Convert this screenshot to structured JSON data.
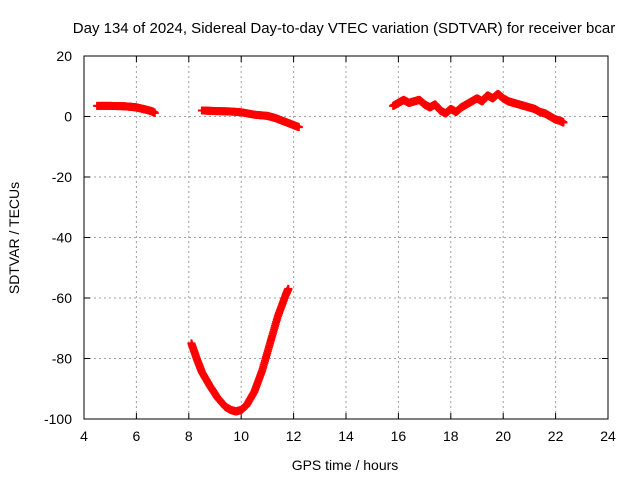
{
  "chart_data": {
    "type": "scatter",
    "title": "Day 134 of 2024, Sidereal Day-to-day VTEC variation (SDTVAR) for receiver bcar",
    "xlabel": "GPS time / hours",
    "ylabel": "SDTVAR / TECUs",
    "xlim": [
      4,
      24
    ],
    "ylim": [
      -100,
      20
    ],
    "xticks": [
      4,
      6,
      8,
      10,
      12,
      14,
      16,
      18,
      20,
      22,
      24
    ],
    "yticks": [
      -100,
      -80,
      -60,
      -40,
      -20,
      0,
      20
    ],
    "xtick_labels": [
      "4",
      "6",
      "8",
      "10",
      "12",
      "14",
      "16",
      "18",
      "20",
      "22",
      "24"
    ],
    "ytick_labels": [
      "-100",
      "-80",
      "-60",
      "-40",
      "-20",
      "0",
      "20"
    ],
    "grid": true,
    "series_color": "#ff0000",
    "series": [
      {
        "name": "segment-1",
        "x": [
          4.5,
          5.0,
          5.5,
          5.8,
          6.0,
          6.2,
          6.4,
          6.6,
          6.7
        ],
        "y": [
          3.5,
          3.5,
          3.4,
          3.2,
          3.0,
          2.6,
          2.2,
          1.7,
          1.2
        ]
      },
      {
        "name": "segment-2",
        "x": [
          8.5,
          9.0,
          9.5,
          10.0,
          10.5,
          11.0,
          11.3,
          11.6,
          11.9,
          12.2
        ],
        "y": [
          2.0,
          1.8,
          1.7,
          1.4,
          0.6,
          0.2,
          -0.5,
          -1.5,
          -2.5,
          -3.5
        ]
      },
      {
        "name": "segment-3",
        "x": [
          8.1,
          8.3,
          8.5,
          8.8,
          9.1,
          9.4,
          9.6,
          9.8,
          10.0,
          10.2,
          10.5,
          10.8,
          11.1,
          11.4,
          11.7,
          11.8
        ],
        "y": [
          -75,
          -80,
          -84.5,
          -89,
          -93,
          -96,
          -97,
          -97.5,
          -97,
          -95.5,
          -91,
          -84,
          -75,
          -66,
          -59,
          -57
        ]
      },
      {
        "name": "segment-4",
        "x": [
          15.8,
          16.0,
          16.2,
          16.4,
          16.6,
          16.8,
          17.0,
          17.2,
          17.4,
          17.6,
          17.8,
          18.0,
          18.2,
          18.4,
          18.6,
          18.8,
          19.0,
          19.2,
          19.4,
          19.6,
          19.8,
          20.0,
          20.2,
          20.4,
          20.6,
          20.8,
          21.0,
          21.2,
          21.4,
          21.6,
          21.8,
          22.0,
          22.2,
          22.3
        ],
        "y": [
          3.5,
          4.5,
          5.5,
          4.5,
          5.0,
          5.5,
          4.0,
          3.0,
          4.0,
          2.0,
          1.0,
          2.5,
          1.5,
          3.0,
          4.0,
          5.0,
          6.0,
          5.0,
          7.0,
          6.0,
          7.5,
          6.0,
          5.0,
          4.5,
          4.0,
          3.5,
          3.0,
          2.5,
          1.5,
          1.0,
          0.0,
          -1.0,
          -1.5,
          -2.0
        ]
      }
    ]
  }
}
